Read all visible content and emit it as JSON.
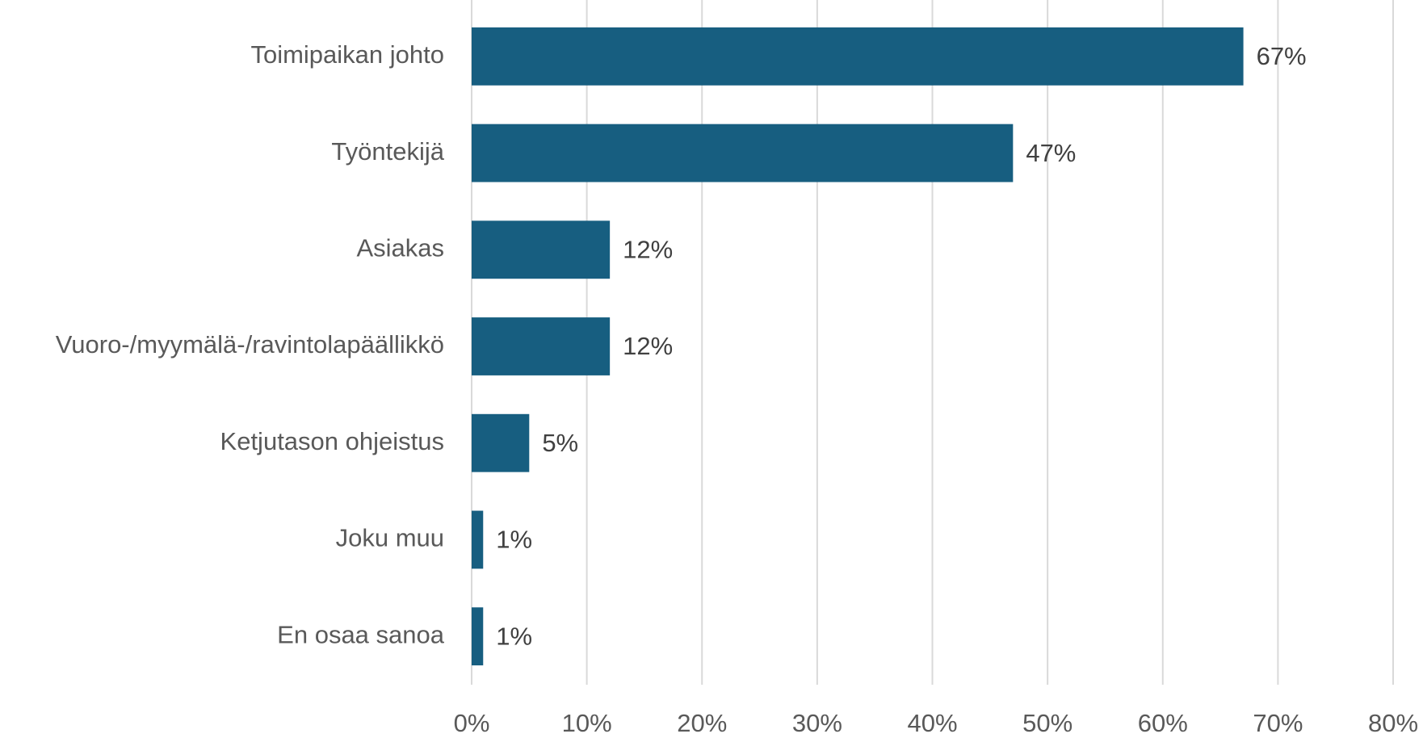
{
  "chart_data": {
    "type": "bar",
    "orientation": "horizontal",
    "categories": [
      "Toimipaikan johto",
      "Työntekijä",
      "Asiakas",
      "Vuoro-/myymälä-/ravintolapäällikkö",
      "Ketjutason ohjeistus",
      "Joku muu",
      "En osaa sanoa"
    ],
    "values": [
      67,
      47,
      12,
      12,
      5,
      1,
      1
    ],
    "value_labels": [
      "67%",
      "47%",
      "12%",
      "12%",
      "5%",
      "1%",
      "1%"
    ],
    "color": "#175e80",
    "xlim": [
      0,
      80
    ],
    "xticks": [
      {
        "value": 0,
        "label": "0%"
      },
      {
        "value": 10,
        "label": "10%"
      },
      {
        "value": 20,
        "label": "20%"
      },
      {
        "value": 30,
        "label": "30%"
      },
      {
        "value": 40,
        "label": "40%"
      },
      {
        "value": 50,
        "label": "50%"
      },
      {
        "value": 60,
        "label": "60%"
      },
      {
        "value": 70,
        "label": "70%"
      },
      {
        "value": 80,
        "label": "80%"
      }
    ],
    "grid": true
  }
}
